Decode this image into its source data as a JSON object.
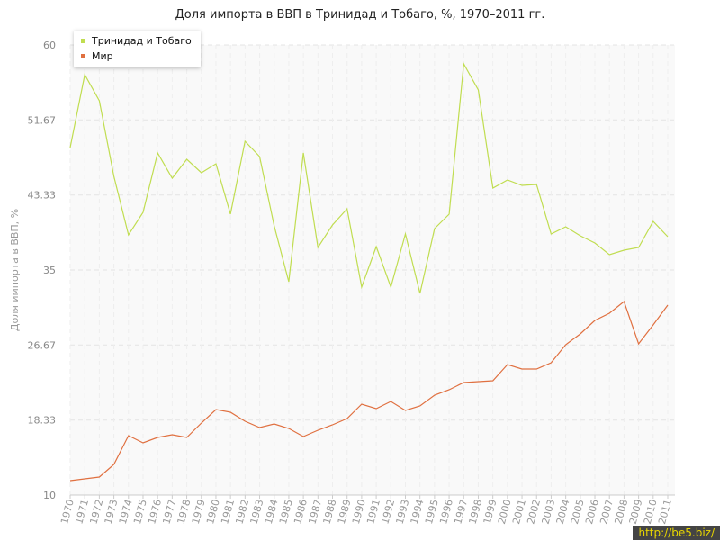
{
  "title": "Доля импорта в ВВП в Тринидад и Тобаго, %, 1970–2011 гг.",
  "watermark": "http://be5.biz/",
  "chart_data": {
    "type": "line",
    "title": "Доля импорта в ВВП в Тринидад и Тобаго, %, 1970–2011 гг.",
    "ylabel": "Доля импорта в ВВП, %",
    "xlabel": "",
    "ylim": [
      10,
      60
    ],
    "yticks": [
      "10",
      "18.33",
      "26.67",
      "35",
      "43.33",
      "51.67",
      "60"
    ],
    "x": [
      "1970",
      "1971",
      "1972",
      "1973",
      "1974",
      "1975",
      "1976",
      "1977",
      "1978",
      "1979",
      "1980",
      "1981",
      "1982",
      "1983",
      "1984",
      "1985",
      "1986",
      "1987",
      "1988",
      "1989",
      "1990",
      "1991",
      "1992",
      "1993",
      "1994",
      "1995",
      "1996",
      "1997",
      "1998",
      "1999",
      "2000",
      "2001",
      "2002",
      "2003",
      "2004",
      "2005",
      "2006",
      "2007",
      "2008",
      "2009",
      "2010",
      "2011"
    ],
    "grid": true,
    "legend_position": "top-left",
    "series": [
      {
        "name": "Тринидад и Тобаго",
        "color": "#c0dd50",
        "values": [
          48.6,
          56.7,
          53.8,
          45.4,
          38.9,
          41.4,
          48.0,
          45.2,
          47.3,
          45.8,
          46.8,
          41.2,
          49.3,
          47.6,
          39.9,
          33.7,
          48.0,
          37.5,
          40.0,
          41.8,
          33.1,
          37.6,
          33.1,
          39.0,
          32.4,
          39.6,
          41.2,
          57.9,
          55.0,
          44.1,
          45.0,
          44.4,
          44.5,
          39.0,
          39.8,
          38.8,
          38.0,
          36.7,
          37.2,
          37.5,
          40.4,
          38.7
        ]
      },
      {
        "name": "Мир",
        "color": "#e07040",
        "values": [
          11.6,
          11.8,
          12.0,
          13.4,
          16.6,
          15.8,
          16.4,
          16.7,
          16.4,
          18.0,
          19.5,
          19.2,
          18.2,
          17.5,
          17.9,
          17.4,
          16.5,
          17.2,
          17.8,
          18.5,
          20.1,
          19.6,
          20.4,
          19.4,
          19.9,
          21.1,
          21.7,
          22.5,
          22.6,
          22.7,
          24.5,
          24.0,
          24.0,
          24.7,
          26.7,
          27.9,
          29.4,
          30.2,
          31.5,
          26.8,
          28.9,
          31.1
        ]
      }
    ]
  }
}
